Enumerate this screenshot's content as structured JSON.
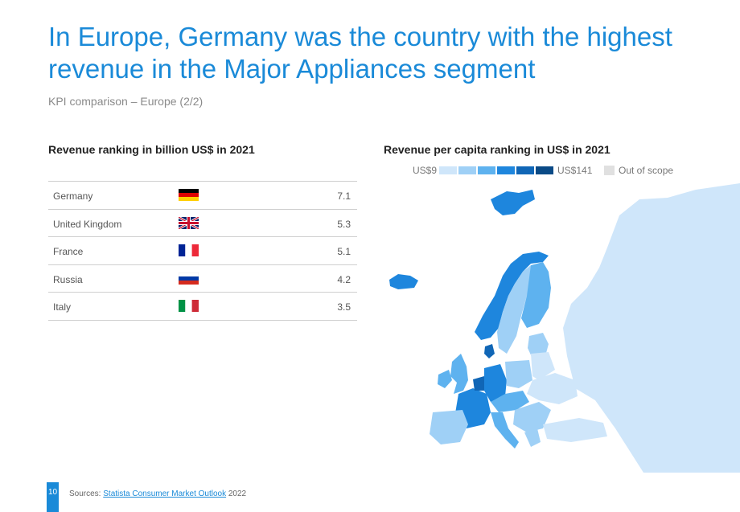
{
  "header": {
    "title": "In Europe, Germany was the country with the highest revenue in the Major Appliances segment",
    "subtitle": "KPI comparison – Europe (2/2)"
  },
  "ranking": {
    "title": "Revenue ranking in billion US$ in 2021",
    "rows": [
      {
        "country": "Germany",
        "flag": "germany-flag",
        "value": "7.1"
      },
      {
        "country": "United Kingdom",
        "flag": "uk-flag",
        "value": "5.3"
      },
      {
        "country": "France",
        "flag": "france-flag",
        "value": "5.1"
      },
      {
        "country": "Russia",
        "flag": "russia-flag",
        "value": "4.2"
      },
      {
        "country": "Italy",
        "flag": "italy-flag",
        "value": "3.5"
      }
    ]
  },
  "map": {
    "title": "Revenue per capita ranking in US$ in 2021",
    "legend": {
      "min_label": "US$9",
      "max_label": "US$141",
      "out_of_scope_label": "Out of scope",
      "scale_colors": [
        "#cfe6fa",
        "#9fd0f6",
        "#5eb2ef",
        "#1e86dd",
        "#1066b6",
        "#0a4a86"
      ],
      "out_of_scope_color": "#e0e0e0"
    }
  },
  "footer": {
    "page_number": "10",
    "source_prefix": "Sources:",
    "source_link": "Statista Consumer Market Outlook",
    "source_year": "2022"
  }
}
